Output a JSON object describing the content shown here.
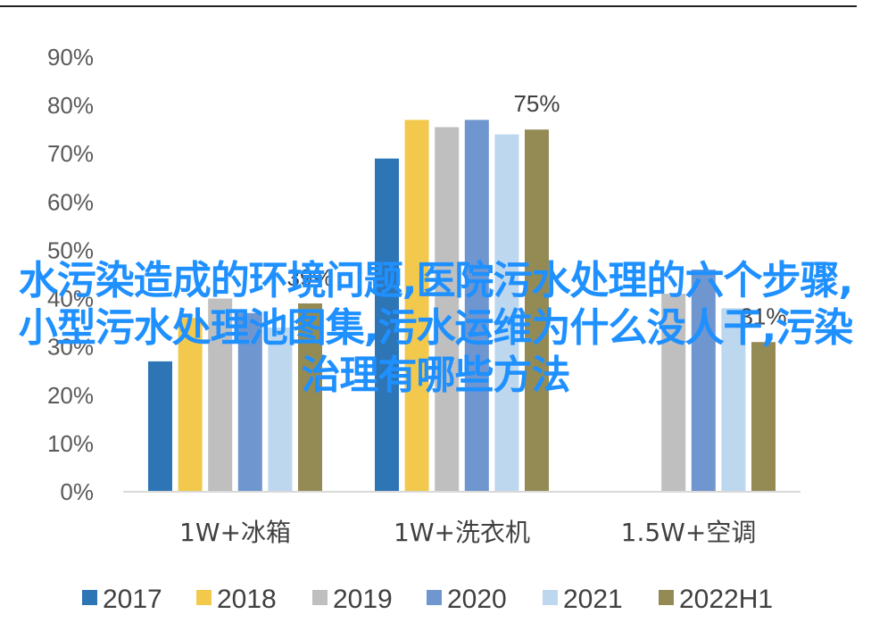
{
  "overlay_title": "水污染造成的环境问题,医院污水处理的六个步骤,小型污水处理池图集,污水运维为什么没人干,污染治理有哪些方法",
  "colors": {
    "2017": "#2e75b6",
    "2018": "#f2c94c",
    "2019": "#bfbfbf",
    "2020": "#6f96cf",
    "2021": "#bdd7ee",
    "2022H1": "#948b54"
  },
  "chart_data": {
    "type": "bar",
    "categories": [
      "1W+冰箱",
      "1W+洗衣机",
      "1.5W+空调"
    ],
    "series": [
      {
        "name": "2017",
        "values": [
          27,
          69,
          null
        ]
      },
      {
        "name": "2018",
        "values": [
          36,
          77,
          null
        ]
      },
      {
        "name": "2019",
        "values": [
          40,
          75.5,
          41
        ]
      },
      {
        "name": "2020",
        "values": [
          37,
          77,
          46
        ]
      },
      {
        "name": "2021",
        "values": [
          34,
          74,
          38
        ]
      },
      {
        "name": "2022H1",
        "values": [
          39,
          75,
          31
        ]
      }
    ],
    "ylim": [
      0,
      90
    ],
    "yticks": [
      "0%",
      "10%",
      "20%",
      "30%",
      "40%",
      "50%",
      "60%",
      "70%",
      "80%",
      "90%"
    ],
    "data_labels": [
      {
        "category": 0,
        "series": 5,
        "text": "39%"
      },
      {
        "category": 1,
        "series": 5,
        "text": "75%"
      },
      {
        "category": 2,
        "series": 5,
        "text": "31%"
      }
    ],
    "legend_position": "bottom",
    "gridlines": false
  }
}
